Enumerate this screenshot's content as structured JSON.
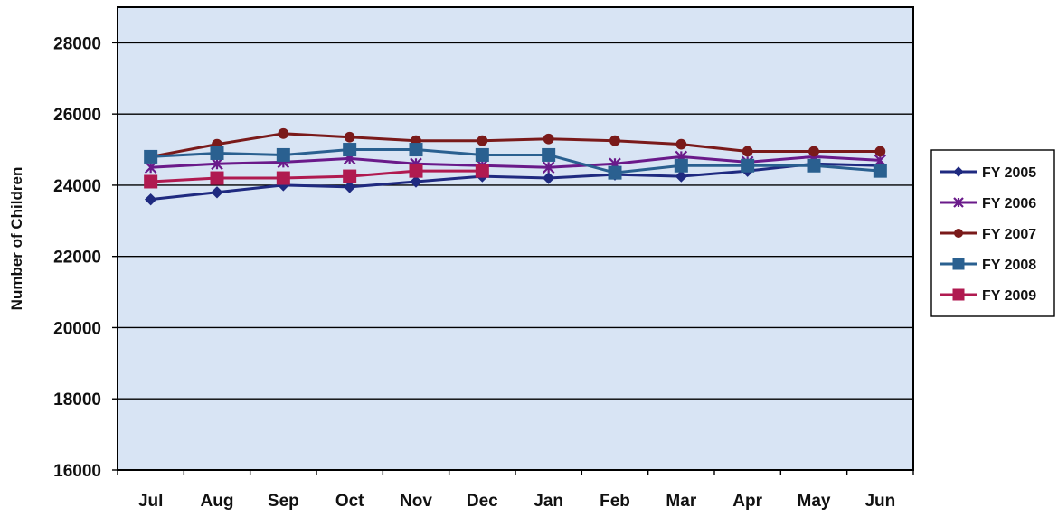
{
  "chart_data": {
    "type": "line",
    "title": "",
    "xlabel": "",
    "ylabel": "Number of Children",
    "categories": [
      "Jul",
      "Aug",
      "Sep",
      "Oct",
      "Nov",
      "Dec",
      "Jan",
      "Feb",
      "Mar",
      "Apr",
      "May",
      "Jun"
    ],
    "ylim": [
      16000,
      29000
    ],
    "yticks": [
      "16000",
      "18000",
      "20000",
      "22000",
      "24000",
      "26000",
      "28000"
    ],
    "grid": true,
    "legend_position": "right",
    "background": "#d8e4f4",
    "series": [
      {
        "name": "FY 2005",
        "color": "#1f2a80",
        "marker": "diamond",
        "values": [
          23600,
          23800,
          24000,
          23950,
          24100,
          24250,
          24200,
          24300,
          24250,
          24400,
          24600,
          24550
        ]
      },
      {
        "name": "FY 2006",
        "color": "#6a1a8a",
        "marker": "star",
        "values": [
          24500,
          24600,
          24650,
          24750,
          24600,
          24550,
          24500,
          24600,
          24800,
          24650,
          24800,
          24700
        ]
      },
      {
        "name": "FY 2007",
        "color": "#7a1a1a",
        "marker": "circle",
        "values": [
          24800,
          25150,
          25450,
          25350,
          25250,
          25250,
          25300,
          25250,
          25150,
          24950,
          24950,
          24950
        ]
      },
      {
        "name": "FY 2008",
        "color": "#2a6090",
        "marker": "square",
        "values": [
          24800,
          24900,
          24850,
          25000,
          25000,
          24850,
          24850,
          24350,
          24550,
          24550,
          24550,
          24400
        ]
      },
      {
        "name": "FY 2009",
        "color": "#b01a50",
        "marker": "square",
        "values": [
          24100,
          24200,
          24200,
          24250,
          24400,
          24400,
          null,
          null,
          null,
          null,
          null,
          null
        ]
      }
    ]
  }
}
